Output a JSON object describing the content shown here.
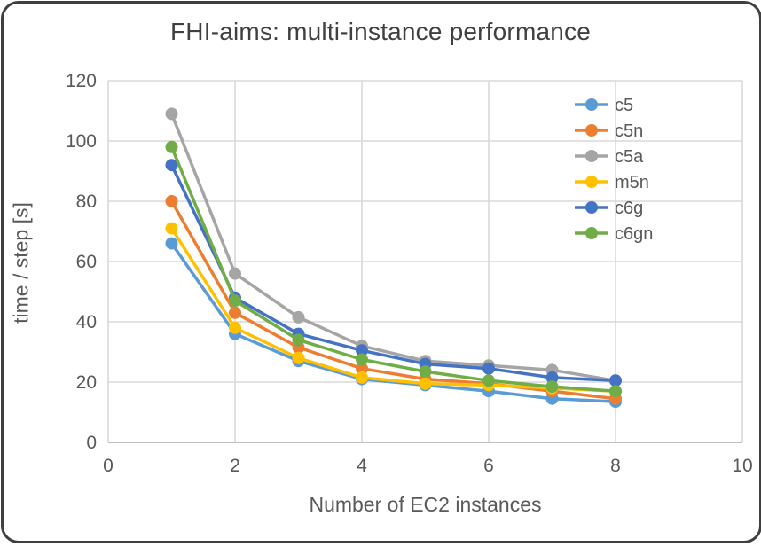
{
  "chart_data": {
    "type": "line",
    "title": "FHI-aims: multi-instance performance",
    "xlabel": "Number of EC2 instances",
    "ylabel": "time / step [s]",
    "x": [
      1,
      2,
      3,
      4,
      5,
      6,
      7,
      8
    ],
    "series": [
      {
        "name": "c5",
        "color": "#5B9BD5",
        "values": [
          66,
          36,
          27,
          21,
          19,
          17,
          14.5,
          13.5
        ]
      },
      {
        "name": "c5n",
        "color": "#ED7D31",
        "values": [
          80,
          43,
          31.5,
          24.5,
          21,
          19.5,
          17,
          14.5
        ]
      },
      {
        "name": "c5a",
        "color": "#A5A5A5",
        "values": [
          109,
          56,
          41.5,
          32,
          27,
          25.5,
          24,
          20.5
        ]
      },
      {
        "name": "m5n",
        "color": "#FFC000",
        "values": [
          71,
          38,
          28,
          21.5,
          19.5,
          19,
          18,
          17
        ]
      },
      {
        "name": "c6g",
        "color": "#4472C4",
        "values": [
          92,
          48,
          36,
          30.5,
          26,
          24.5,
          21.5,
          20.5
        ]
      },
      {
        "name": "c6gn",
        "color": "#70AD47",
        "values": [
          98,
          47,
          34,
          27.5,
          23.5,
          20.5,
          18.5,
          17
        ]
      }
    ],
    "xlim": [
      0,
      10
    ],
    "ylim": [
      0,
      120
    ],
    "x_ticks": [
      "0",
      "2",
      "4",
      "6",
      "8",
      "10"
    ],
    "y_ticks": [
      "0",
      "20",
      "40",
      "60",
      "80",
      "100",
      "120"
    ],
    "grid": true,
    "legend_position": "top-right-inside",
    "legend_labels": [
      "c5",
      "c5n",
      "c5a",
      "m5n",
      "c6g",
      "c6gn"
    ]
  },
  "colors": {
    "title_text": "#404040",
    "axis_text": "#595959",
    "gridline": "#d9d9d9",
    "card_border": "#3f3f3f",
    "background": "#ffffff"
  }
}
